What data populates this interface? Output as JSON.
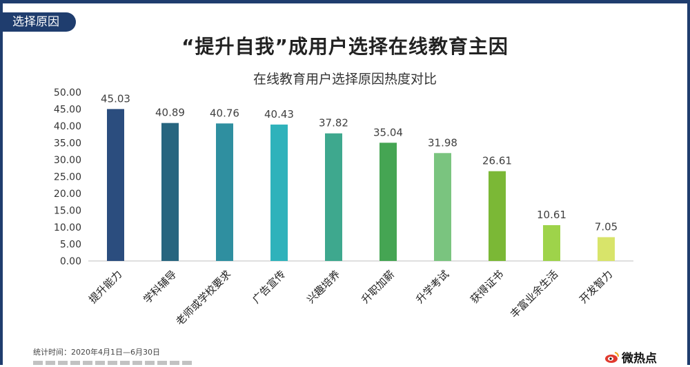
{
  "header": {
    "section_tag": "选择原因",
    "title": "“提升自我”成用户选择在线教育主因",
    "subtitle": "在线教育用户选择原因热度对比"
  },
  "footer": {
    "stat_period": "统计时间：2020年4月1日—6月30日",
    "logo_text": "微热点"
  },
  "colors": {
    "frame": "#1f3d6e",
    "axis": "#bfbfbf"
  },
  "chart_data": {
    "type": "bar",
    "title": "在线教育用户选择原因热度对比",
    "xlabel": "",
    "ylabel": "",
    "ylim": [
      0,
      50
    ],
    "yticks": [
      "0.00",
      "5.00",
      "10.00",
      "15.00",
      "20.00",
      "25.00",
      "30.00",
      "35.00",
      "40.00",
      "45.00",
      "50.00"
    ],
    "grid": false,
    "categories": [
      "提升能力",
      "学科辅导",
      "老师或学校要求",
      "广告宣传",
      "兴趣培养",
      "升职加薪",
      "升学考试",
      "获得证书",
      "丰富业余生活",
      "开发智力"
    ],
    "values": [
      45.03,
      40.89,
      40.76,
      40.43,
      37.82,
      35.04,
      31.98,
      26.61,
      10.61,
      7.05
    ],
    "value_labels": [
      "45.03",
      "40.89",
      "40.76",
      "40.43",
      "37.82",
      "35.04",
      "31.98",
      "26.61",
      "10.61",
      "7.05"
    ],
    "bar_colors": [
      "#2b4d7e",
      "#27657f",
      "#2f8fa0",
      "#2fb2bb",
      "#3ea88e",
      "#45a553",
      "#7ac47f",
      "#7bb836",
      "#9ed34a",
      "#d8e46a"
    ]
  }
}
